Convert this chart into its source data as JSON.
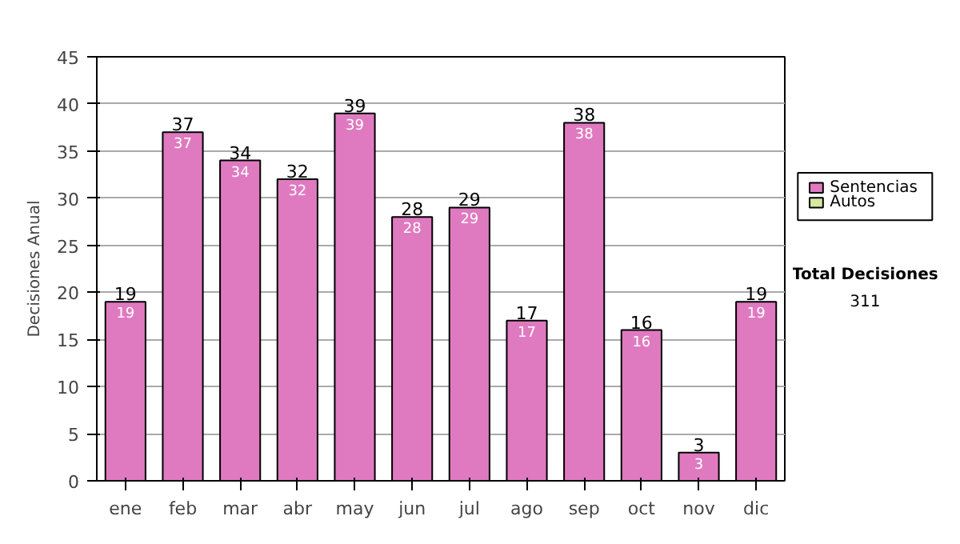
{
  "chart_data": {
    "type": "bar",
    "stacked": true,
    "ylabel": "Decisiones Anual",
    "categories": [
      "ene",
      "feb",
      "mar",
      "abr",
      "may",
      "jun",
      "jul",
      "ago",
      "sep",
      "oct",
      "nov",
      "dic"
    ],
    "series": [
      {
        "name": "Sentencias",
        "color": "#e07ac0",
        "values": [
          19,
          37,
          34,
          32,
          39,
          28,
          29,
          17,
          38,
          16,
          3,
          19
        ],
        "value_labels": [
          "19",
          "37",
          "34",
          "32",
          "39",
          "28",
          "29",
          "17",
          "38",
          "16",
          "3",
          "19"
        ]
      },
      {
        "name": "Autos",
        "color": "#d4e8a0",
        "values": [
          0,
          0,
          0,
          0,
          0,
          0,
          0,
          0,
          0,
          0,
          0,
          0
        ]
      }
    ],
    "totals": [
      "19",
      "37",
      "34",
      "32",
      "39",
      "28",
      "29",
      "17",
      "38",
      "16",
      "3",
      "19"
    ],
    "ylim": [
      0,
      45
    ],
    "yticks": [
      0,
      5,
      10,
      15,
      20,
      25,
      30,
      35,
      40,
      45
    ],
    "grid": "y",
    "legend": "right",
    "annotations": [
      "Total Decisiones",
      "311"
    ]
  }
}
